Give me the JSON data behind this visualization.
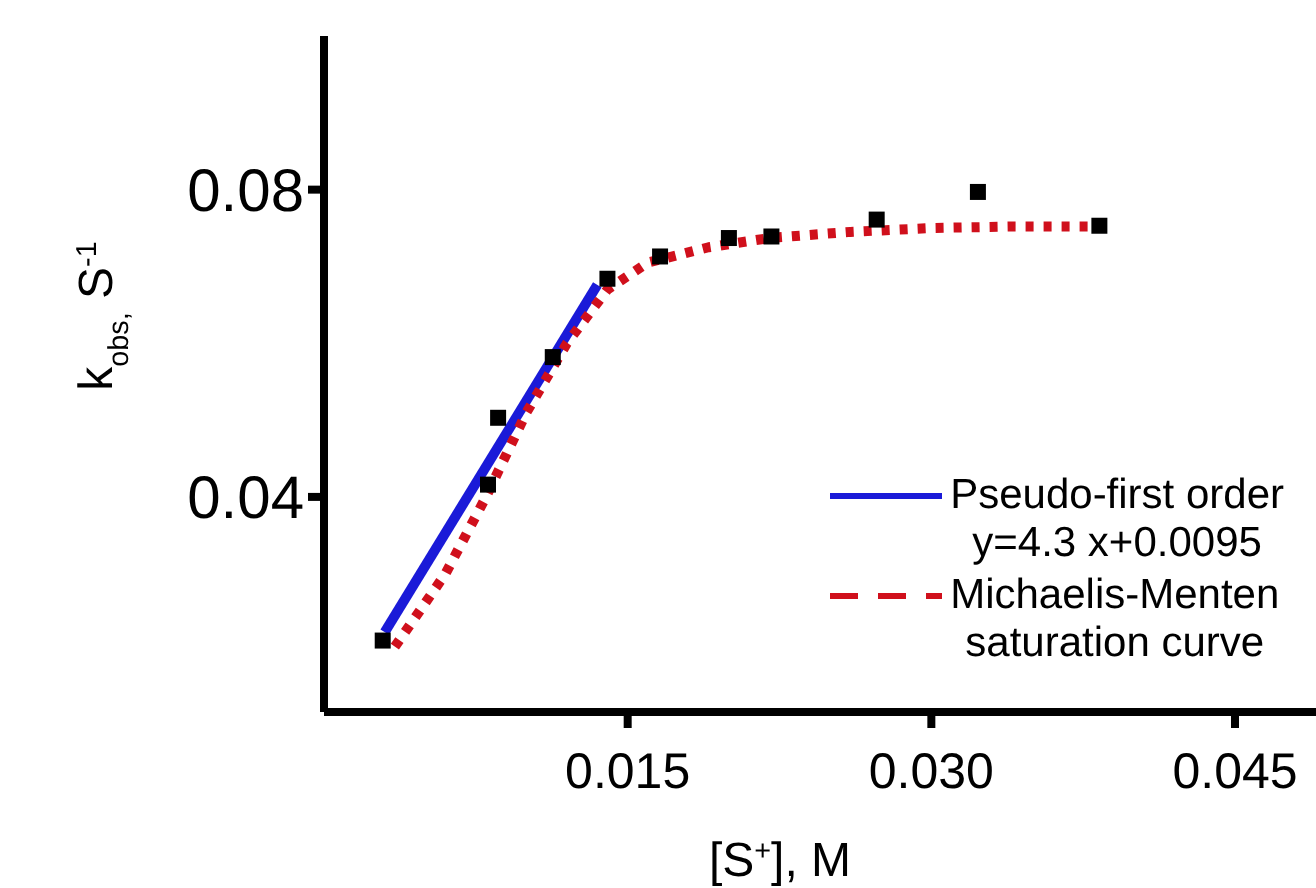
{
  "chart_data": {
    "type": "scatter",
    "xlabel": "[S$^{+}$], M",
    "ylabel": "k$_{obs,}$ S$^{-1}$",
    "xlim": [
      0,
      0.049
    ],
    "ylim": [
      0.012,
      0.1
    ],
    "xticks": [
      0.015,
      {
        "value": 0.03,
        "label": "0.030"
      },
      0.045
    ],
    "yticks": [
      0.04,
      0.08
    ],
    "grid": false,
    "legend": "bottom right",
    "marker": "square",
    "series": [
      {
        "color": "#000000",
        "x": [
          0.0029,
          0.0081,
          0.0086,
          0.0113,
          0.014,
          0.0166,
          0.02,
          0.0221,
          0.0273,
          0.0323,
          0.0383
        ],
        "values": [
          0.0213,
          0.0416,
          0.0503,
          0.0582,
          0.0684,
          0.0713,
          0.0737,
          0.0739,
          0.0761,
          0.0797,
          0.0753
        ]
      },
      {
        "type": "line",
        "name": "Pseudo-first order\ny=4.3 x+0.0095",
        "color": "#1a1ad8",
        "line_style": "solid",
        "marker": "none",
        "x": [
          0.003,
          0.0135
        ],
        "values": [
          0.0224,
          0.0676
        ]
      },
      {
        "type": "line",
        "name": "Michaelis-Menten\nsaturation curve",
        "color": "#d0101c",
        "line_style": "dotted",
        "marker": "none",
        "x": [
          0.0035,
          0.006,
          0.008,
          0.01,
          0.012,
          0.014,
          0.016,
          0.019,
          0.022,
          0.026,
          0.03,
          0.034,
          0.0383
        ],
        "values": [
          0.0205,
          0.03,
          0.04,
          0.051,
          0.06,
          0.067,
          0.0705,
          0.0725,
          0.0737,
          0.0745,
          0.075,
          0.0752,
          0.0752
        ]
      }
    ]
  }
}
